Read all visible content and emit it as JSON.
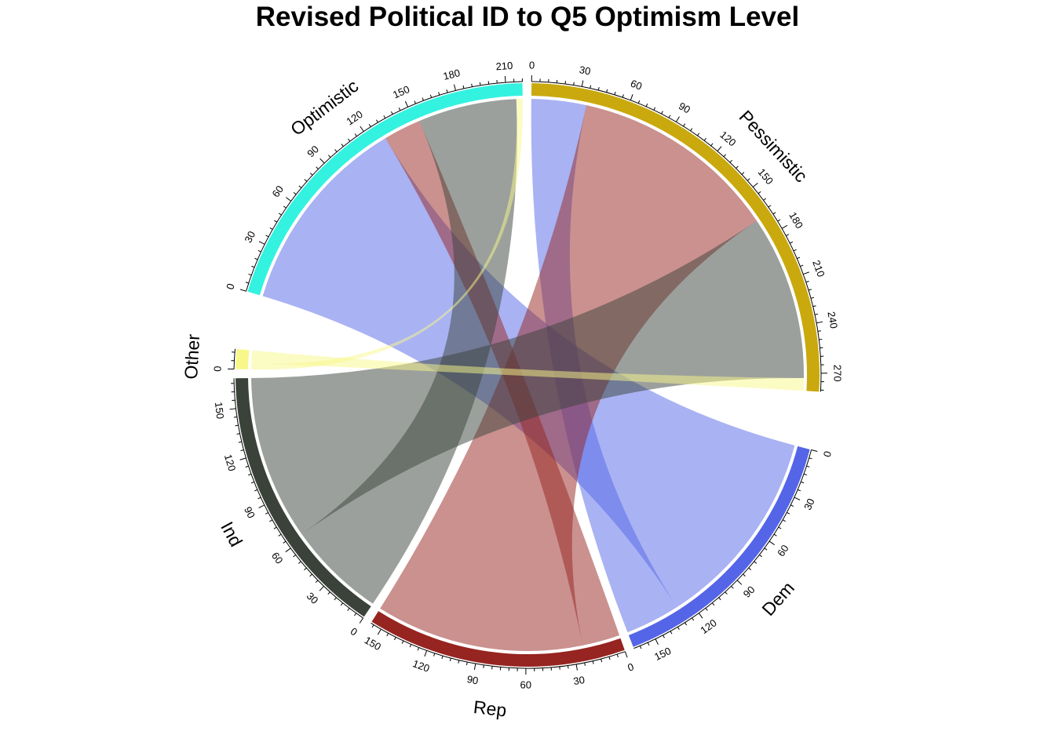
{
  "chart_data": {
    "type": "chord",
    "title": "Revised Political ID to Q5 Optimism Level",
    "sectors": [
      {
        "name": "Pessimistic",
        "total": 281,
        "color": "#C9A90D",
        "ticks": [
          0,
          30,
          60,
          90,
          120,
          150,
          180,
          210,
          240,
          270
        ]
      },
      {
        "name": "Dem",
        "total": 164,
        "color": "#5465E8",
        "ticks": [
          0,
          30,
          60,
          90,
          120,
          150
        ]
      },
      {
        "name": "Rep",
        "total": 157,
        "color": "#962420",
        "ticks": [
          0,
          30,
          60,
          90,
          120,
          150
        ]
      },
      {
        "name": "Ind",
        "total": 168,
        "color": "#3A4239",
        "ticks": [
          0,
          30,
          60,
          90,
          120,
          150
        ]
      },
      {
        "name": "Other",
        "total": 12,
        "color": "#F8F88A",
        "ticks": [
          0
        ]
      },
      {
        "name": "Optimistic",
        "total": 220,
        "color": "#33F2DF",
        "ticks": [
          0,
          30,
          60,
          90,
          120,
          150,
          180,
          210
        ]
      }
    ],
    "links": [
      {
        "from": "Dem",
        "to": "Pessimistic",
        "value": 35
      },
      {
        "from": "Dem",
        "to": "Optimistic",
        "value": 129
      },
      {
        "from": "Rep",
        "to": "Pessimistic",
        "value": 133
      },
      {
        "from": "Rep",
        "to": "Optimistic",
        "value": 24
      },
      {
        "from": "Ind",
        "to": "Pessimistic",
        "value": 105
      },
      {
        "from": "Ind",
        "to": "Optimistic",
        "value": 63
      },
      {
        "from": "Other",
        "to": "Pessimistic",
        "value": 8
      },
      {
        "from": "Other",
        "to": "Optimistic",
        "value": 4
      }
    ]
  }
}
